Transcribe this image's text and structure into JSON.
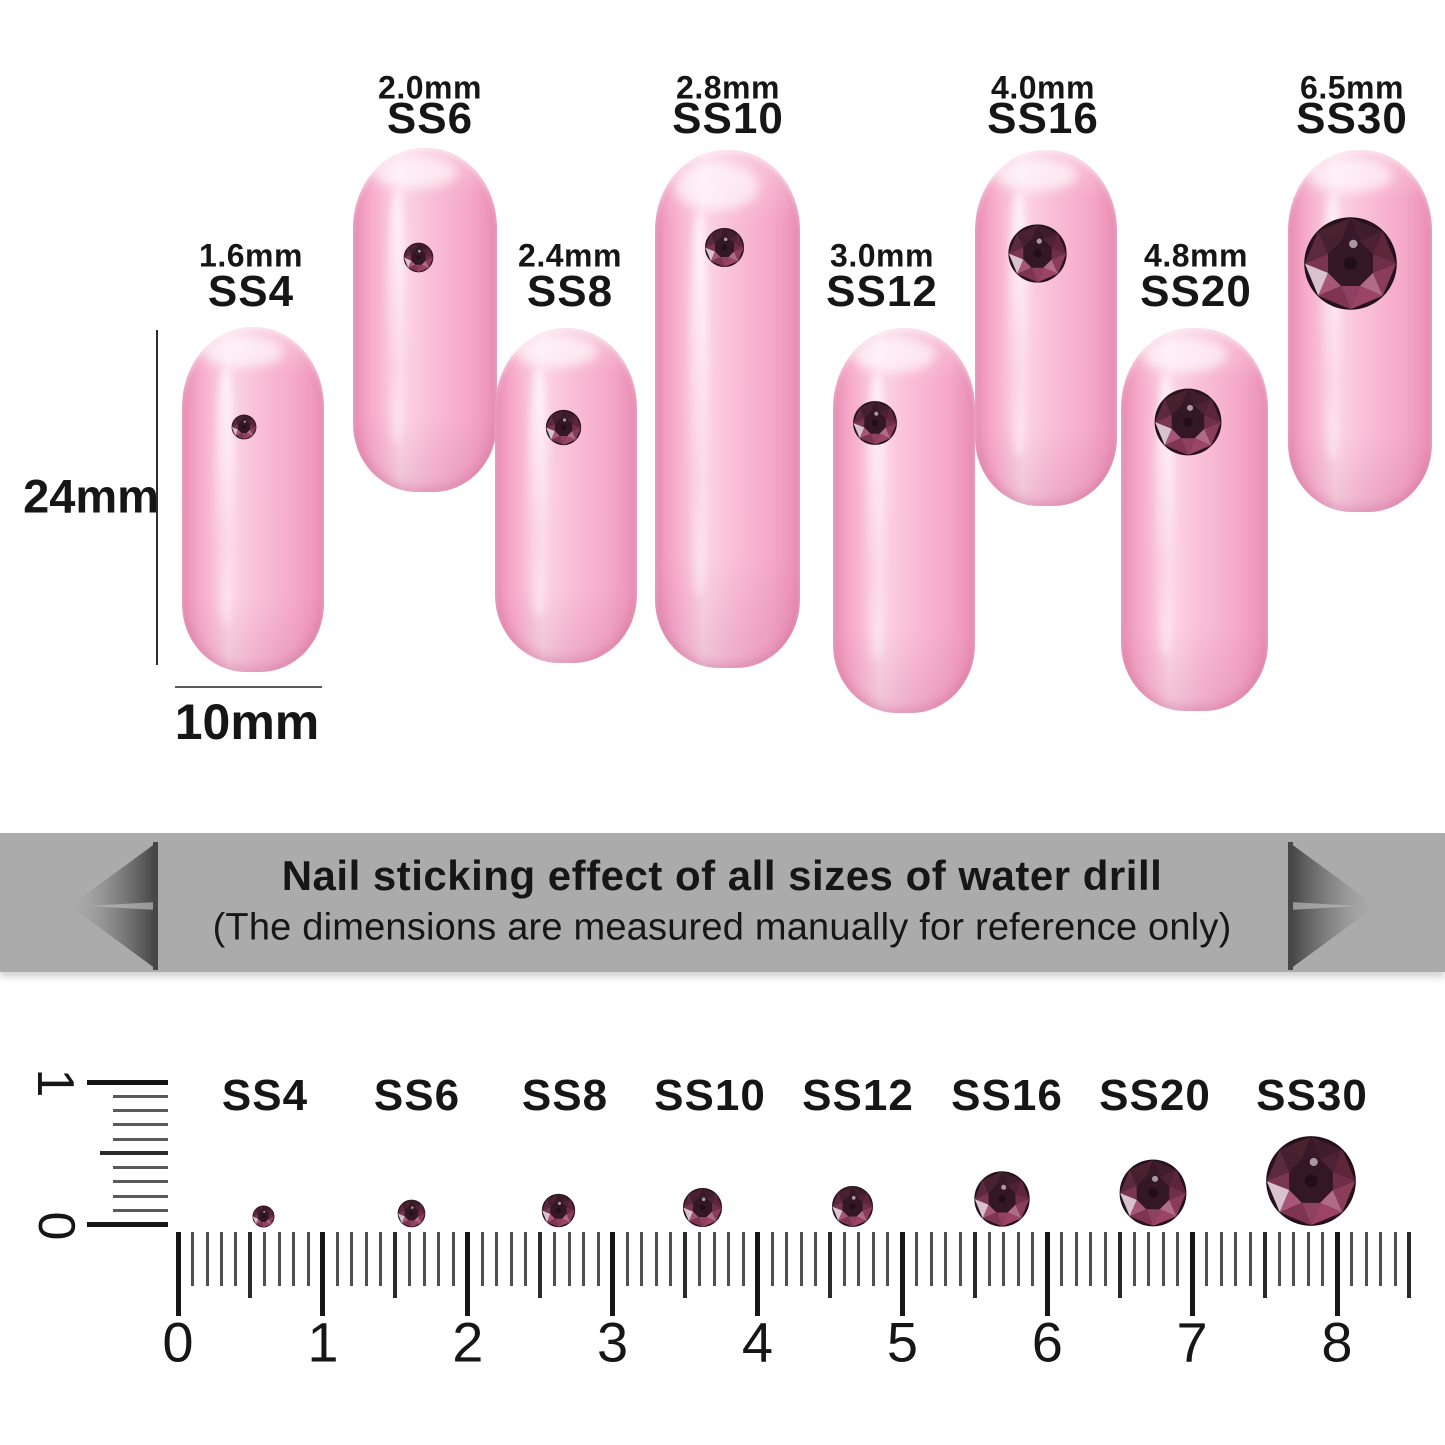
{
  "banner": {
    "line1": "Nail sticking effect of all sizes of water drill",
    "line2": "(The dimensions are measured manually for reference only)"
  },
  "nail_dimensions": {
    "height": "24mm",
    "width": "10mm"
  },
  "sizes": [
    {
      "code": "SS4",
      "diameter": "1.6mm",
      "mm": 1.6
    },
    {
      "code": "SS6",
      "diameter": "2.0mm",
      "mm": 2.0
    },
    {
      "code": "SS8",
      "diameter": "2.4mm",
      "mm": 2.4
    },
    {
      "code": "SS10",
      "diameter": "2.8mm",
      "mm": 2.8
    },
    {
      "code": "SS12",
      "diameter": "3.0mm",
      "mm": 3.0
    },
    {
      "code": "SS16",
      "diameter": "4.0mm",
      "mm": 4.0
    },
    {
      "code": "SS20",
      "diameter": "4.8mm",
      "mm": 4.8
    },
    {
      "code": "SS30",
      "diameter": "6.5mm",
      "mm": 6.5
    }
  ],
  "ruler": {
    "horizontal_numbers": [
      "0",
      "1",
      "2",
      "3",
      "4",
      "5",
      "6",
      "7",
      "8"
    ],
    "vertical_numbers": [
      "1",
      "0"
    ]
  },
  "colors": {
    "nail_pink": "#f5a9c8",
    "nail_pink_light": "#fcd6e6",
    "nail_pink_dark": "#ea8fb5",
    "gem_burgundy": "#6e2f47",
    "banner_gray": "#ababab",
    "ink": "#161616"
  }
}
